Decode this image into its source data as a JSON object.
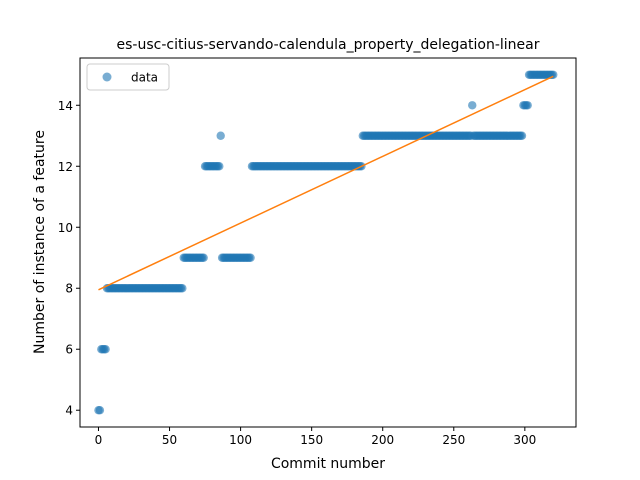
{
  "chart_data": {
    "type": "scatter",
    "title": "es-usc-citius-servando-calendula_property_delegation-linear",
    "xlabel": "Commit number",
    "ylabel": "Number of instance of a feature",
    "xlim": [
      -13,
      336
    ],
    "ylim": [
      3.45,
      15.55
    ],
    "x_ticks": [
      0,
      50,
      100,
      150,
      200,
      250,
      300
    ],
    "y_ticks": [
      4,
      6,
      8,
      10,
      12,
      14
    ],
    "grid": false,
    "legend": {
      "position": "top-left",
      "entries": [
        "data"
      ]
    },
    "colors": {
      "data": "#1f77b4",
      "fit": "#ff7f0e"
    },
    "series": [
      {
        "name": "data",
        "kind": "scatter",
        "segments": [
          {
            "x_start": 0,
            "x_end": 1,
            "y": 4
          },
          {
            "x_start": 2,
            "x_end": 5,
            "y": 6
          },
          {
            "x_start": 6,
            "x_end": 59,
            "y": 8
          },
          {
            "x_start": 60,
            "x_end": 74,
            "y": 9
          },
          {
            "x_start": 75,
            "x_end": 85,
            "y": 12
          },
          {
            "x_start": 86,
            "x_end": 86,
            "y": 13
          },
          {
            "x_start": 87,
            "x_end": 107,
            "y": 9
          },
          {
            "x_start": 108,
            "x_end": 185,
            "y": 12
          },
          {
            "x_start": 186,
            "x_end": 262,
            "y": 13
          },
          {
            "x_start": 263,
            "x_end": 263,
            "y": 14
          },
          {
            "x_start": 264,
            "x_end": 298,
            "y": 13
          },
          {
            "x_start": 299,
            "x_end": 302,
            "y": 14
          },
          {
            "x_start": 303,
            "x_end": 320,
            "y": 15
          }
        ]
      },
      {
        "kind": "line",
        "x": [
          0,
          320
        ],
        "y": [
          7.95,
          14.95
        ]
      }
    ]
  }
}
